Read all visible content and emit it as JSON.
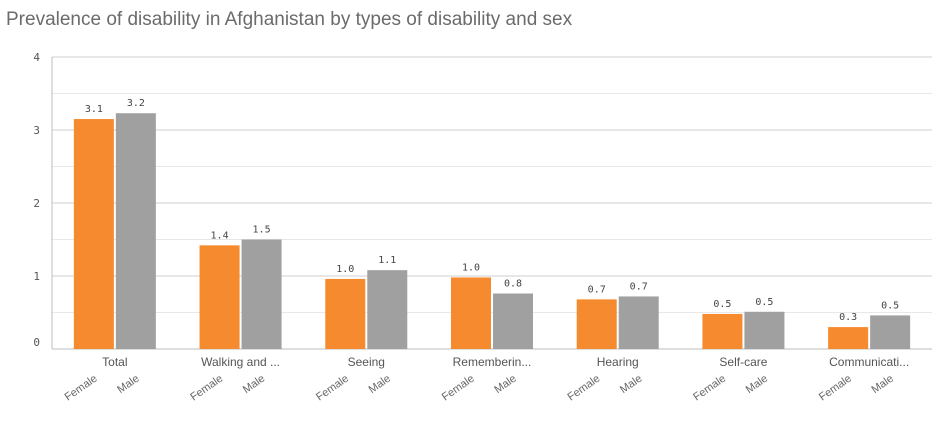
{
  "chart_data": {
    "type": "bar",
    "title": "Prevalence of disability in Afghanistan by types of disability and sex",
    "categories": [
      "Total",
      "Walking and ...",
      "Seeing",
      "Rememberin...",
      "Hearing",
      "Self-care",
      "Communicati..."
    ],
    "series": [
      {
        "name": "Female",
        "values": [
          3.15,
          1.42,
          0.96,
          0.98,
          0.68,
          0.48,
          0.3
        ],
        "labels": [
          "3.1",
          "1.4",
          "1.0",
          "1.0",
          "0.7",
          "0.5",
          "0.3"
        ],
        "color": "#f58a2e"
      },
      {
        "name": "Male",
        "values": [
          3.23,
          1.5,
          1.08,
          0.76,
          0.72,
          0.51,
          0.46
        ],
        "labels": [
          "3.2",
          "1.5",
          "1.1",
          "0.8",
          "0.7",
          "0.5",
          "0.5"
        ],
        "color": "#a0a0a0"
      }
    ],
    "y_ticks": [
      "0",
      "1",
      "2",
      "3",
      "4"
    ],
    "ylim": [
      0,
      4
    ],
    "xlabel": "",
    "ylabel": "",
    "grid": true,
    "gridline_color": "#d9d9d9"
  }
}
